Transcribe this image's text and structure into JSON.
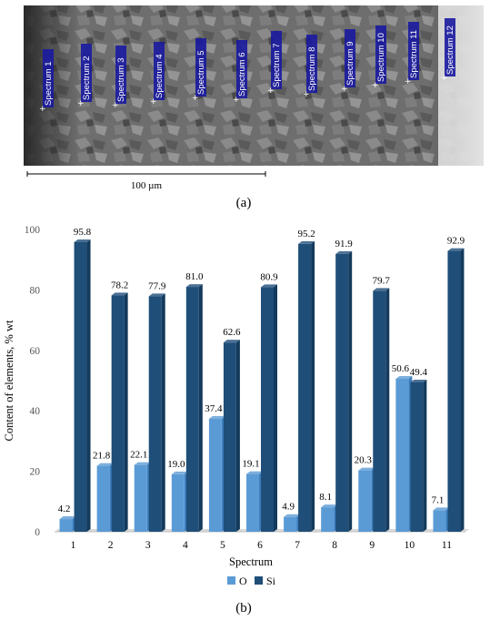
{
  "caption_a": "(a)",
  "caption_b": "(b)",
  "scale_bar_label": "100 µm",
  "spectrum_markers": [
    "Spectrum 1",
    "Spectrum 2",
    "Spectrum 3",
    "Spectrum 4",
    "Spectrum 5",
    "Spectrum 6",
    "Spectrum 7",
    "Spectrum 8",
    "Spectrum 9",
    "Spectrum 10",
    "Spectrum 11",
    "Spectrum 12"
  ],
  "colors": {
    "O": "#5b9bd5",
    "Si": "#1f4e79",
    "O_side": "#3d7fbf",
    "Si_side": "#143a5c"
  },
  "chart_data": {
    "type": "bar",
    "categories": [
      "1",
      "2",
      "3",
      "4",
      "5",
      "6",
      "7",
      "8",
      "9",
      "10",
      "11"
    ],
    "series": [
      {
        "name": "O",
        "values": [
          4.2,
          21.8,
          22.1,
          19.0,
          37.4,
          19.1,
          4.9,
          8.1,
          20.3,
          50.6,
          7.1
        ]
      },
      {
        "name": "Si",
        "values": [
          95.8,
          78.2,
          77.9,
          81.0,
          62.6,
          80.9,
          95.2,
          91.9,
          79.7,
          49.4,
          92.9
        ]
      }
    ],
    "xlabel": "Spectrum",
    "ylabel": "Content of elements, % wt",
    "ylim": [
      0,
      100
    ],
    "yticks": [
      "0",
      "20",
      "40",
      "60",
      "80",
      "100"
    ],
    "grid": false,
    "legend_position": "bottom"
  }
}
